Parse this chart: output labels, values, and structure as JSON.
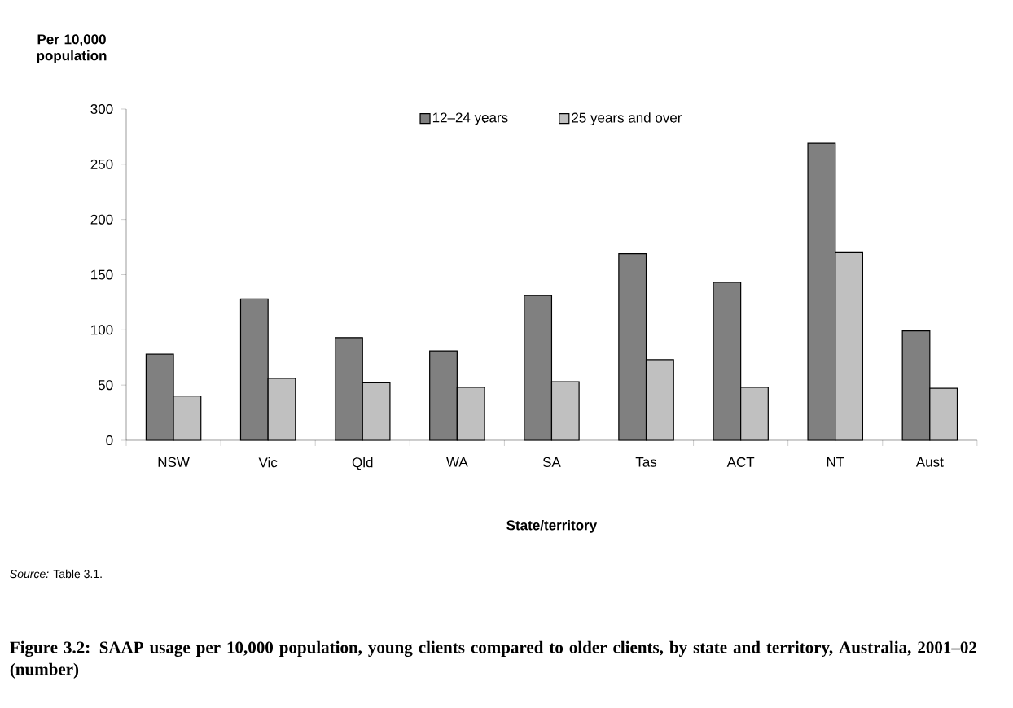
{
  "chart_data": {
    "type": "bar",
    "title": "Figure 3.2: SAAP usage per 10,000 population, young clients compared to older clients, by state and territory, Australia, 2001–02 (number)",
    "ylabel": "Per 10,000 population",
    "xlabel": "State/territory",
    "annotations": [
      "*Source:* Table 3.1."
    ],
    "categories": [
      "NSW",
      "Vic",
      "Qld",
      "WA",
      "SA",
      "Tas",
      "ACT",
      "NT",
      "Aust"
    ],
    "series": [
      {
        "name": "12–24 years",
        "color": "#808080",
        "values": [
          78,
          128,
          93,
          81,
          131,
          169,
          143,
          269,
          99
        ]
      },
      {
        "name": "25 years and over",
        "color": "#c0c0c0",
        "values": [
          40,
          56,
          52,
          48,
          53,
          73,
          48,
          170,
          47
        ]
      }
    ],
    "ylim": [
      0,
      300
    ],
    "yticks": [
      0,
      50,
      100,
      150,
      200,
      250,
      300
    ],
    "legend": "top"
  }
}
